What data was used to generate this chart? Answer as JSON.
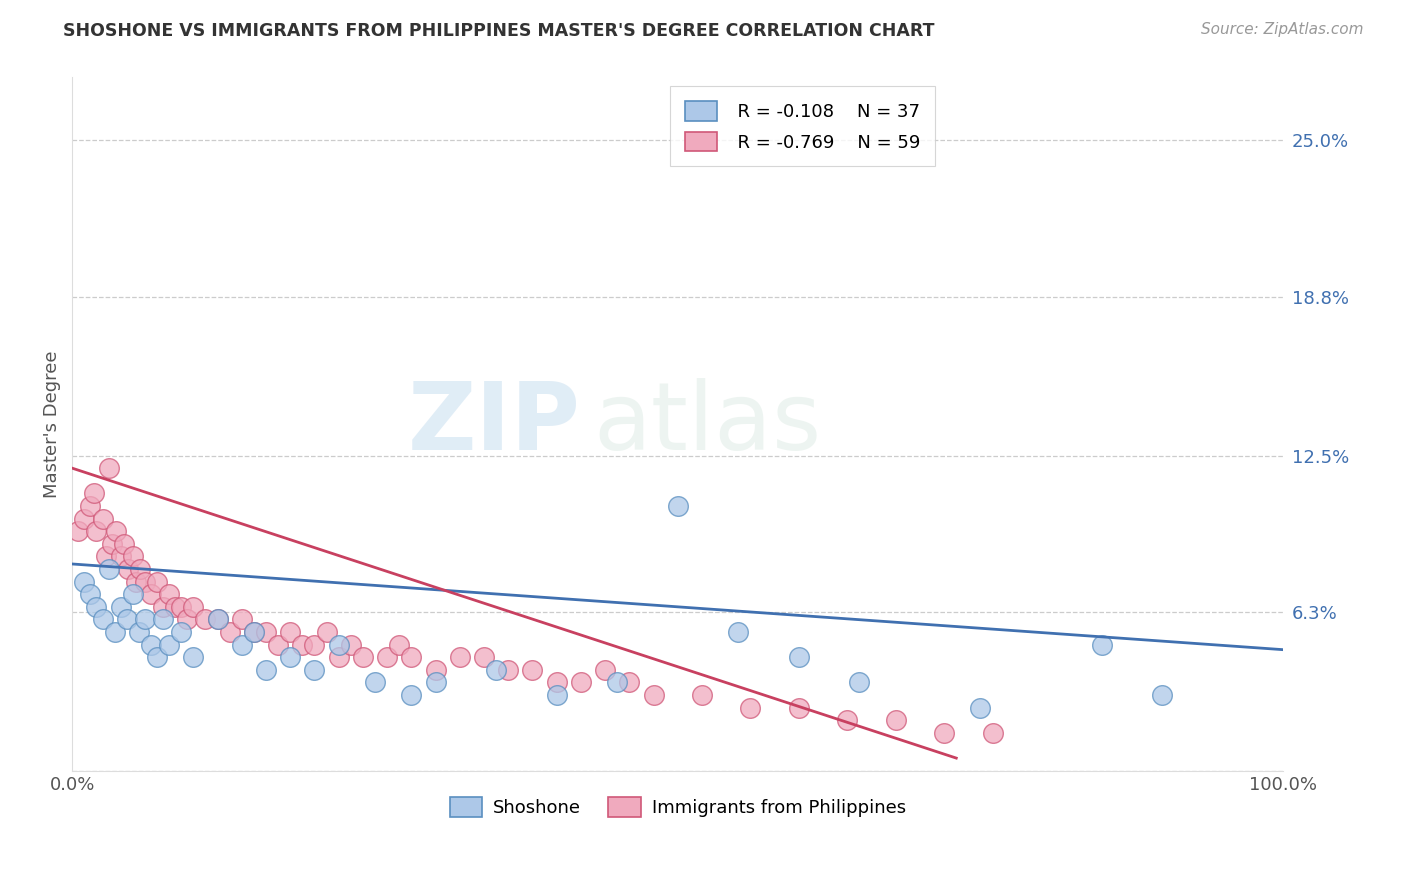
{
  "title": "SHOSHONE VS IMMIGRANTS FROM PHILIPPINES MASTER'S DEGREE CORRELATION CHART",
  "source_text": "Source: ZipAtlas.com",
  "ylabel": "Master's Degree",
  "yticks": [
    0.0,
    0.063,
    0.125,
    0.188,
    0.25
  ],
  "ytick_labels": [
    "",
    "6.3%",
    "12.5%",
    "18.8%",
    "25.0%"
  ],
  "legend_blue_r": "R = -0.108",
  "legend_blue_n": "N = 37",
  "legend_pink_r": "R = -0.769",
  "legend_pink_n": "N = 59",
  "legend_blue_label": "Shoshone",
  "legend_pink_label": "Immigrants from Philippines",
  "blue_color": "#adc8e8",
  "pink_color": "#f0aabe",
  "blue_edge_color": "#5a8fc0",
  "pink_edge_color": "#d05878",
  "blue_line_color": "#4070b0",
  "pink_line_color": "#c84060",
  "watermark_zip": "ZIP",
  "watermark_atlas": "atlas",
  "xlim": [
    0.0,
    1.0
  ],
  "ylim": [
    0.0,
    0.275
  ],
  "shoshone_x": [
    0.01,
    0.015,
    0.02,
    0.025,
    0.03,
    0.035,
    0.04,
    0.045,
    0.05,
    0.055,
    0.06,
    0.065,
    0.07,
    0.075,
    0.08,
    0.09,
    0.1,
    0.12,
    0.14,
    0.15,
    0.16,
    0.18,
    0.2,
    0.22,
    0.25,
    0.28,
    0.3,
    0.35,
    0.4,
    0.45,
    0.5,
    0.55,
    0.6,
    0.65,
    0.75,
    0.85,
    0.9
  ],
  "shoshone_y": [
    0.075,
    0.07,
    0.065,
    0.06,
    0.08,
    0.055,
    0.065,
    0.06,
    0.07,
    0.055,
    0.06,
    0.05,
    0.045,
    0.06,
    0.05,
    0.055,
    0.045,
    0.06,
    0.05,
    0.055,
    0.04,
    0.045,
    0.04,
    0.05,
    0.035,
    0.03,
    0.035,
    0.04,
    0.03,
    0.035,
    0.105,
    0.055,
    0.045,
    0.035,
    0.025,
    0.05,
    0.03
  ],
  "philippines_x": [
    0.005,
    0.01,
    0.015,
    0.018,
    0.02,
    0.025,
    0.028,
    0.03,
    0.033,
    0.036,
    0.04,
    0.043,
    0.046,
    0.05,
    0.053,
    0.056,
    0.06,
    0.065,
    0.07,
    0.075,
    0.08,
    0.085,
    0.09,
    0.095,
    0.1,
    0.11,
    0.12,
    0.13,
    0.14,
    0.15,
    0.16,
    0.17,
    0.18,
    0.19,
    0.2,
    0.21,
    0.22,
    0.23,
    0.24,
    0.26,
    0.27,
    0.28,
    0.3,
    0.32,
    0.34,
    0.36,
    0.38,
    0.4,
    0.42,
    0.44,
    0.46,
    0.48,
    0.52,
    0.56,
    0.6,
    0.64,
    0.68,
    0.72,
    0.76
  ],
  "philippines_y": [
    0.095,
    0.1,
    0.105,
    0.11,
    0.095,
    0.1,
    0.085,
    0.12,
    0.09,
    0.095,
    0.085,
    0.09,
    0.08,
    0.085,
    0.075,
    0.08,
    0.075,
    0.07,
    0.075,
    0.065,
    0.07,
    0.065,
    0.065,
    0.06,
    0.065,
    0.06,
    0.06,
    0.055,
    0.06,
    0.055,
    0.055,
    0.05,
    0.055,
    0.05,
    0.05,
    0.055,
    0.045,
    0.05,
    0.045,
    0.045,
    0.05,
    0.045,
    0.04,
    0.045,
    0.045,
    0.04,
    0.04,
    0.035,
    0.035,
    0.04,
    0.035,
    0.03,
    0.03,
    0.025,
    0.025,
    0.02,
    0.02,
    0.015,
    0.015
  ],
  "blue_line_x": [
    0.0,
    1.0
  ],
  "blue_line_y": [
    0.082,
    0.048
  ],
  "pink_line_x": [
    0.0,
    0.73
  ],
  "pink_line_y": [
    0.12,
    0.005
  ]
}
